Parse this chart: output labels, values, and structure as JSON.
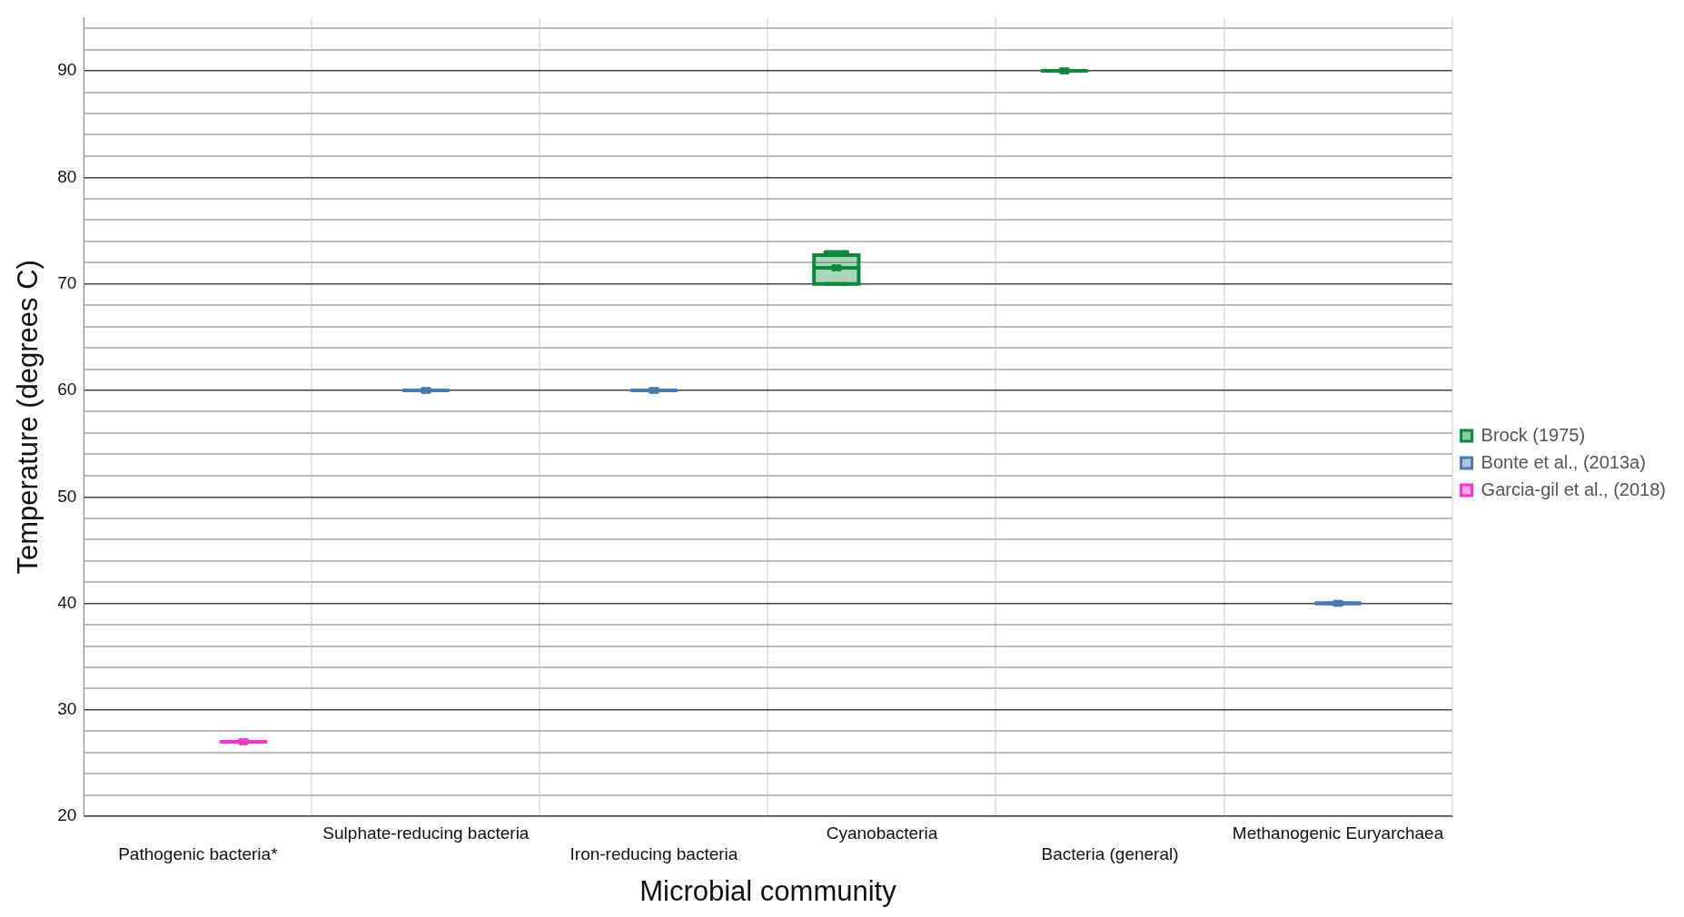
{
  "chart_data": {
    "type": "box",
    "xlabel": "Microbial community",
    "ylabel": "Temperature (degrees C)",
    "categories": [
      "Pathogenic bacteria*",
      "Sulphate-reducing bacteria",
      "Iron-reducing bacteria",
      "Cyanobacteria",
      "Bacteria (general)",
      "Methanogenic Euryarchaea"
    ],
    "series": [
      {
        "name": "Brock (1975)",
        "color": "#0a8a3a",
        "boxes": [
          null,
          null,
          null,
          {
            "low": 70,
            "q1": 70,
            "median": 71.5,
            "q3": 72.7,
            "high": 73,
            "mean": 71.5
          },
          {
            "low": 90,
            "q1": 90,
            "median": 90,
            "q3": 90,
            "high": 90,
            "mean": 90
          },
          null
        ]
      },
      {
        "name": "Bonte et al., (2013a)",
        "color": "#4a7ab5",
        "boxes": [
          null,
          {
            "low": 60,
            "q1": 60,
            "median": 60,
            "q3": 60,
            "high": 60,
            "mean": 60
          },
          {
            "low": 60,
            "q1": 60,
            "median": 60,
            "q3": 60,
            "high": 60,
            "mean": 60
          },
          null,
          null,
          {
            "low": 40,
            "q1": 40,
            "median": 40,
            "q3": 40,
            "high": 40,
            "mean": 40
          }
        ]
      },
      {
        "name": "Garcia-gil et al., (2018)",
        "color": "#ff33cc",
        "boxes": [
          {
            "low": 27,
            "q1": 27,
            "median": 27,
            "q3": 27,
            "high": 27,
            "mean": 27
          },
          null,
          null,
          null,
          null,
          null
        ]
      }
    ],
    "ylim": [
      20,
      95
    ],
    "yticks": [
      20,
      {
        "value": 22,
        "label": null
      },
      {
        "value": 24,
        "label": null
      },
      {
        "value": 26,
        "label": null
      },
      {
        "value": 28,
        "label": null
      },
      30,
      {
        "value": 32,
        "label": null
      },
      {
        "value": 34,
        "label": null
      },
      {
        "value": 36,
        "label": null
      },
      {
        "value": 38,
        "label": null
      },
      40,
      {
        "value": 42,
        "label": null
      },
      {
        "value": 44,
        "label": null
      },
      {
        "value": 46,
        "label": null
      },
      {
        "value": 48,
        "label": null
      },
      50,
      {
        "value": 52,
        "label": null
      },
      {
        "value": 54,
        "label": null
      },
      {
        "value": 56,
        "label": null
      },
      {
        "value": 58,
        "label": null
      },
      60,
      {
        "value": 62,
        "label": null
      },
      {
        "value": 64,
        "label": null
      },
      {
        "value": 66,
        "label": null
      },
      {
        "value": 68,
        "label": null
      },
      70,
      {
        "value": 72,
        "label": null
      },
      {
        "value": 74,
        "label": null
      },
      {
        "value": 76,
        "label": null
      },
      {
        "value": 78,
        "label": null
      },
      80,
      {
        "value": 82,
        "label": null
      },
      {
        "value": 84,
        "label": null
      },
      {
        "value": 86,
        "label": null
      },
      {
        "value": 88,
        "label": null
      },
      90,
      {
        "value": 92,
        "label": null
      },
      {
        "value": 94,
        "label": null
      }
    ],
    "grid": true,
    "legend": "right"
  }
}
